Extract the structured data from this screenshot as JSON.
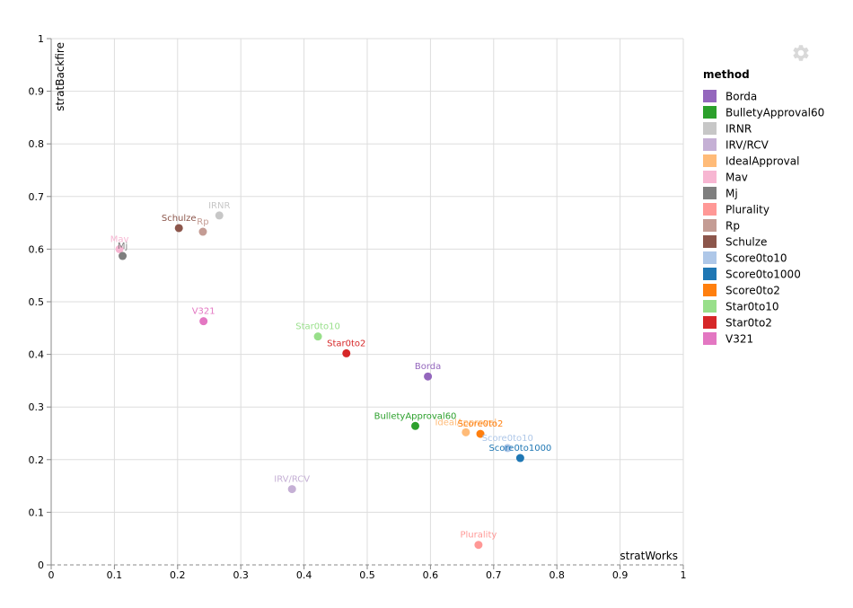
{
  "chart_data": {
    "type": "scatter",
    "xlabel": "stratWorks",
    "ylabel": "stratBackfire",
    "xlim": [
      0,
      1
    ],
    "ylim": [
      0,
      1
    ],
    "x_ticks": [
      "0",
      "0.1",
      "0.2",
      "0.3",
      "0.4",
      "0.5",
      "0.6",
      "0.7",
      "0.8",
      "0.9",
      "1"
    ],
    "y_ticks": [
      "0",
      "0.1",
      "0.2",
      "0.3",
      "0.4",
      "0.5",
      "0.6",
      "0.7",
      "0.8",
      "0.9",
      "1"
    ],
    "grid": true,
    "legend_title": "method",
    "legend_position": "right",
    "series": [
      {
        "name": "Borda",
        "color": "#9467bd",
        "x": 0.596,
        "y": 0.358
      },
      {
        "name": "BulletyApproval60",
        "color": "#2ca02c",
        "x": 0.576,
        "y": 0.264
      },
      {
        "name": "IRNR",
        "color": "#c7c7c7",
        "x": 0.266,
        "y": 0.664
      },
      {
        "name": "IRV/RCV",
        "color": "#c5b0d5",
        "x": 0.381,
        "y": 0.144
      },
      {
        "name": "IdealApproval",
        "color": "#ffbb78",
        "x": 0.656,
        "y": 0.252
      },
      {
        "name": "Mav",
        "color": "#f7b6d2",
        "x": 0.108,
        "y": 0.6
      },
      {
        "name": "Mj",
        "color": "#7f7f7f",
        "x": 0.113,
        "y": 0.587
      },
      {
        "name": "Plurality",
        "color": "#ff9896",
        "x": 0.676,
        "y": 0.038
      },
      {
        "name": "Rp",
        "color": "#c49c94",
        "x": 0.24,
        "y": 0.633
      },
      {
        "name": "Schulze",
        "color": "#8c564b",
        "x": 0.202,
        "y": 0.64
      },
      {
        "name": "Score0to10",
        "color": "#aec7e8",
        "x": 0.722,
        "y": 0.222
      },
      {
        "name": "Score0to1000",
        "color": "#1f77b4",
        "x": 0.742,
        "y": 0.203
      },
      {
        "name": "Score0to2",
        "color": "#ff7f0e",
        "x": 0.679,
        "y": 0.249
      },
      {
        "name": "Star0to10",
        "color": "#98df8a",
        "x": 0.422,
        "y": 0.434
      },
      {
        "name": "Star0to2",
        "color": "#d62728",
        "x": 0.467,
        "y": 0.402
      },
      {
        "name": "V321",
        "color": "#e377c2",
        "x": 0.241,
        "y": 0.463
      }
    ]
  },
  "toolbar": {
    "settings_icon": "gear-icon",
    "icon_color": "#d9d9d9"
  }
}
